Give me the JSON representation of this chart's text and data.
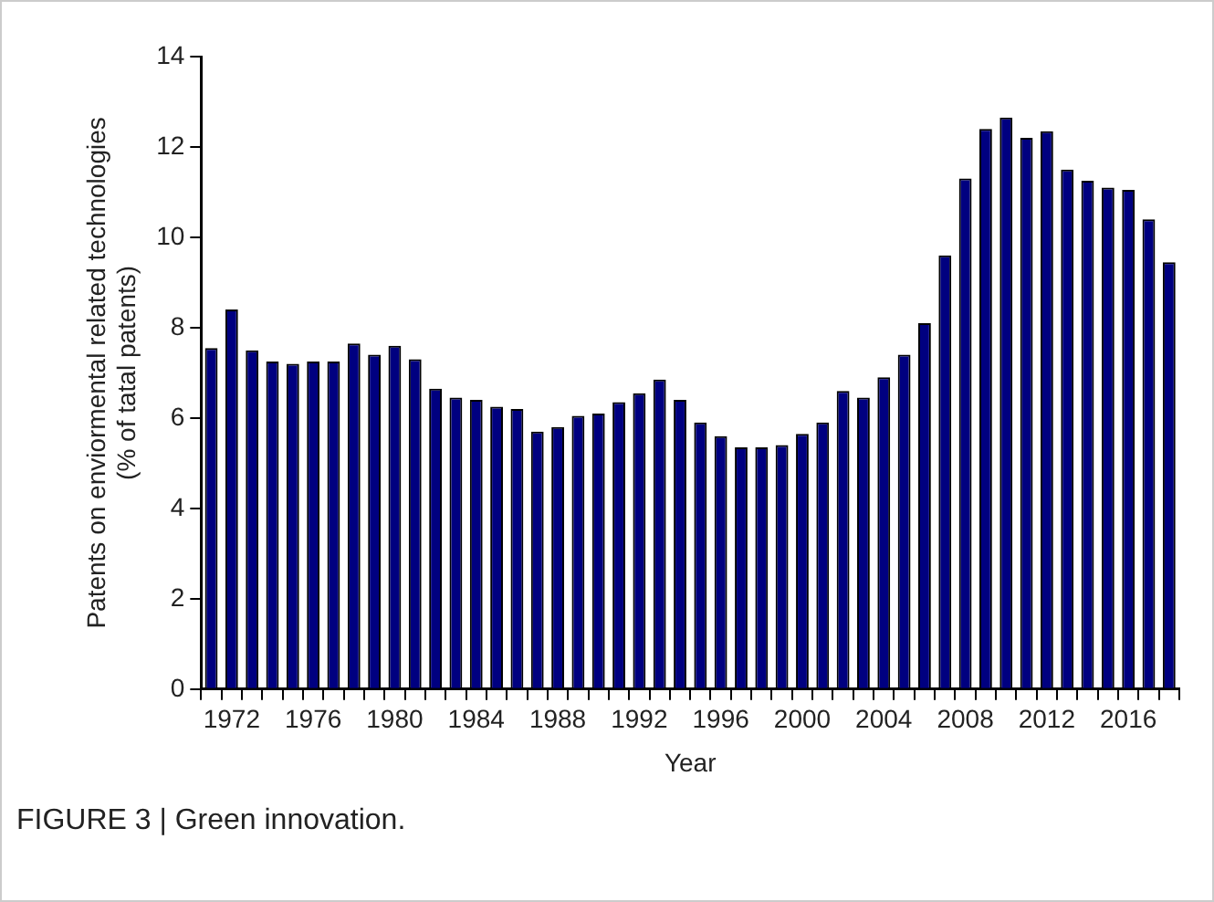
{
  "chart_data": {
    "type": "bar",
    "xlabel": "Year",
    "ylabel": "Patents on enviormental related technologies\n(% of tatal patents)",
    "categories": [
      null,
      "1972",
      null,
      null,
      null,
      "1976",
      null,
      null,
      null,
      "1980",
      null,
      null,
      null,
      "1984",
      null,
      null,
      null,
      "1988",
      null,
      null,
      null,
      "1992",
      null,
      null,
      null,
      "1996",
      null,
      null,
      null,
      "2000",
      null,
      null,
      null,
      "2004",
      null,
      null,
      null,
      "2008",
      null,
      null,
      null,
      "2012",
      null,
      null,
      null,
      "2016",
      null,
      null
    ],
    "values": [
      7.55,
      8.4,
      7.5,
      7.25,
      7.2,
      7.25,
      7.25,
      7.65,
      7.4,
      7.6,
      7.3,
      6.65,
      6.45,
      6.4,
      6.25,
      6.2,
      5.7,
      5.8,
      6.05,
      6.1,
      6.35,
      6.55,
      6.85,
      6.4,
      5.9,
      5.6,
      5.35,
      5.35,
      5.4,
      5.65,
      5.9,
      6.6,
      6.45,
      6.9,
      7.4,
      8.1,
      9.6,
      11.3,
      12.4,
      12.65,
      12.2,
      12.35,
      11.5,
      11.25,
      11.1,
      11.05,
      10.4,
      9.45
    ],
    "color": "#000080",
    "ylim": [
      0,
      14
    ],
    "yticks": [
      0,
      2,
      4,
      6,
      8,
      10,
      12,
      14
    ],
    "grid": false,
    "legend": false,
    "annotations": [
      "FIGURE 3 | Green innovation."
    ]
  }
}
